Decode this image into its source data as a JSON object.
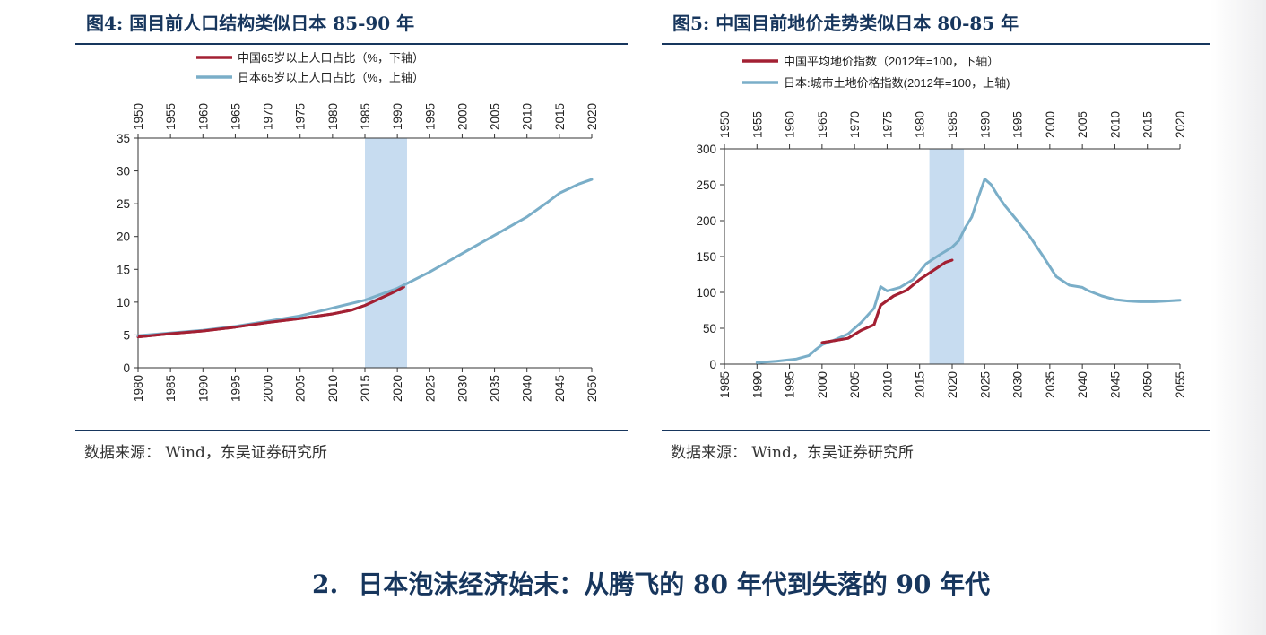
{
  "colors": {
    "title": "#17365d",
    "china_line": "#a32033",
    "japan_line": "#7aaec8",
    "highlight_band": "#c7dcf0",
    "axis": "#333333"
  },
  "section_heading": {
    "number": "2.",
    "text": "日本泡沫经济始末：从腾飞的 80 年代到失落的 90 年代"
  },
  "chart_data": [
    {
      "type": "line",
      "figure_label": "图4:",
      "title": "国目前人口结构类似日本 85-90 年",
      "source": "数据来源： Wind，东吴证券研究所",
      "ylim": [
        0,
        35
      ],
      "yticks": [
        "0",
        "5",
        "10",
        "15",
        "20",
        "25",
        "30",
        "35"
      ],
      "x_bottom": {
        "lim": [
          1980,
          2050
        ],
        "ticks": [
          "1980",
          "1985",
          "1990",
          "1995",
          "2000",
          "2005",
          "2010",
          "2015",
          "2020",
          "2025",
          "2030",
          "2035",
          "2040",
          "2045",
          "2050"
        ]
      },
      "x_top": {
        "lim": [
          1950,
          2020
        ],
        "ticks": [
          "1950",
          "1955",
          "1960",
          "1965",
          "1970",
          "1975",
          "1980",
          "1985",
          "1990",
          "1995",
          "2000",
          "2005",
          "2010",
          "2015",
          "2020"
        ]
      },
      "highlight": {
        "axis": "bottom",
        "from": 2015,
        "to": 2021.5
      },
      "series": [
        {
          "name": "中国65岁以上人口占比（%，下轴）",
          "axis": "bottom",
          "color": "#a32033",
          "x": [
            1980,
            1985,
            1990,
            1995,
            2000,
            2005,
            2010,
            2013,
            2015,
            2017,
            2019,
            2020,
            2021
          ],
          "y": [
            4.7,
            5.2,
            5.6,
            6.2,
            6.9,
            7.5,
            8.2,
            8.8,
            9.5,
            10.4,
            11.3,
            11.8,
            12.3
          ]
        },
        {
          "name": "日本65岁以上人口占比（%，上轴）",
          "axis": "top",
          "color": "#7aaec8",
          "x": [
            1950,
            1955,
            1960,
            1965,
            1970,
            1975,
            1980,
            1985,
            1990,
            1995,
            2000,
            2005,
            2010,
            2013,
            2015,
            2018,
            2020
          ],
          "y": [
            4.9,
            5.3,
            5.7,
            6.3,
            7.1,
            7.9,
            9.1,
            10.3,
            12.1,
            14.6,
            17.4,
            20.2,
            23.0,
            25.1,
            26.6,
            28.0,
            28.7
          ]
        }
      ]
    },
    {
      "type": "line",
      "figure_label": "图5:",
      "title": "中国目前地价走势类似日本 80-85 年",
      "source": "数据来源： Wind，东吴证券研究所",
      "ylim": [
        0,
        300
      ],
      "yticks": [
        "0",
        "50",
        "100",
        "150",
        "200",
        "250",
        "300"
      ],
      "x_bottom": {
        "lim": [
          1985,
          2055
        ],
        "ticks": [
          "1985",
          "1990",
          "1995",
          "2000",
          "2005",
          "2010",
          "2015",
          "2020",
          "2025",
          "2030",
          "2035",
          "2040",
          "2045",
          "2050",
          "2055"
        ]
      },
      "x_top": {
        "lim": [
          1950,
          2020
        ],
        "ticks": [
          "1950",
          "1955",
          "1960",
          "1965",
          "1970",
          "1975",
          "1980",
          "1985",
          "1990",
          "1995",
          "2000",
          "2005",
          "2010",
          "2015",
          "2020"
        ]
      },
      "highlight": {
        "axis": "bottom",
        "from": 2016.5,
        "to": 2021.8
      },
      "series": [
        {
          "name": "中国平均地价指数（2012年=100，下轴）",
          "axis": "bottom",
          "color": "#a32033",
          "x": [
            2000,
            2002,
            2004,
            2006,
            2008,
            2009,
            2011,
            2013,
            2015,
            2017,
            2019,
            2020
          ],
          "y": [
            30,
            33,
            36,
            47,
            55,
            82,
            95,
            103,
            118,
            130,
            142,
            145
          ]
        },
        {
          "name": "日本:城市土地价格指数(2012年=100，上轴)",
          "axis": "top",
          "color": "#7aaec8",
          "x": [
            1955,
            1958,
            1961,
            1963,
            1964,
            1965,
            1967,
            1969,
            1971,
            1973,
            1974,
            1975,
            1977,
            1979,
            1981,
            1983,
            1985,
            1986,
            1987,
            1988,
            1989,
            1990,
            1991,
            1992,
            1993,
            1995,
            1997,
            1999,
            2001,
            2003,
            2005,
            2006,
            2008,
            2010,
            2012,
            2014,
            2016,
            2018,
            2020
          ],
          "y": [
            2,
            4,
            7,
            12,
            20,
            27,
            34,
            42,
            58,
            78,
            108,
            102,
            107,
            118,
            140,
            152,
            163,
            172,
            190,
            205,
            232,
            258,
            250,
            235,
            222,
            200,
            177,
            150,
            122,
            110,
            107,
            102,
            95,
            90,
            88,
            87,
            87,
            88,
            89
          ]
        }
      ]
    }
  ]
}
